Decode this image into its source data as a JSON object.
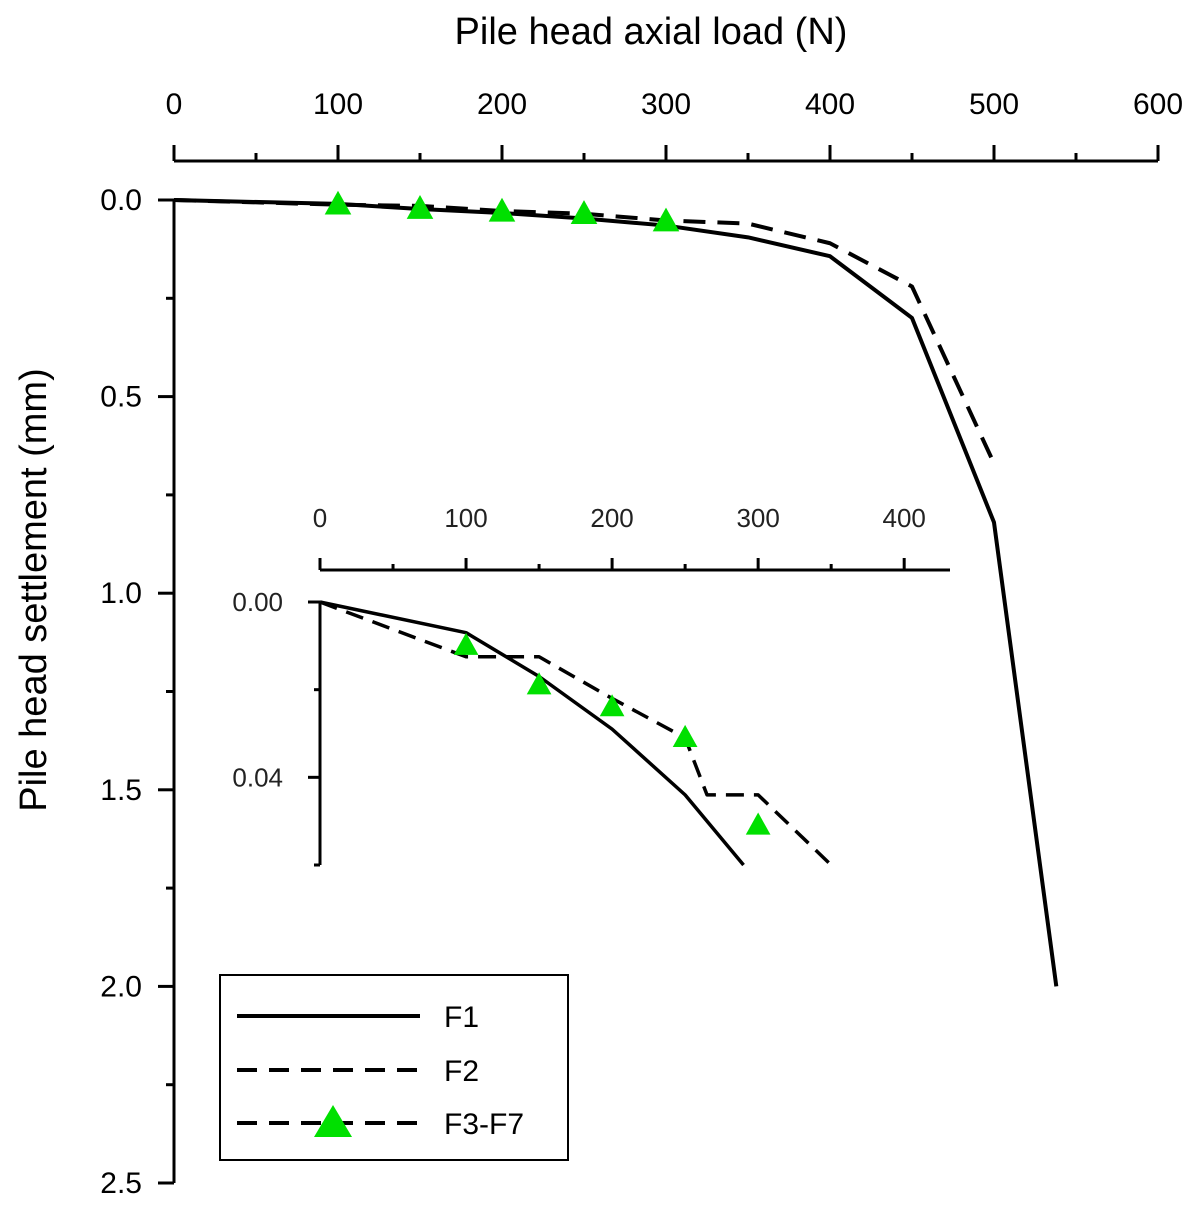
{
  "colors": {
    "line": "#000000",
    "marker": "#00e000",
    "background": "#ffffff"
  },
  "chart_data": [
    {
      "type": "line",
      "xlabel": "Pile head axial load (N)",
      "ylabel": "Pile head settlement (mm)",
      "x_axis_position": "top",
      "y_inverted": true,
      "xlim": [
        0,
        600
      ],
      "ylim": [
        0,
        2.5
      ],
      "xticks": [
        "0",
        "100",
        "200",
        "300",
        "400",
        "500",
        "600"
      ],
      "yticks": [
        "0.0",
        "0.5",
        "1.0",
        "1.5",
        "2.0",
        "2.5"
      ],
      "legend_position": "bottom-left",
      "series": [
        {
          "name": "F1",
          "style": "solid",
          "x": [
            0,
            100,
            150,
            200,
            250,
            300,
            350,
            400,
            450,
            500,
            538
          ],
          "y": [
            0,
            0.01,
            0.023,
            0.033,
            0.047,
            0.065,
            0.095,
            0.143,
            0.3,
            0.82,
            2.0
          ]
        },
        {
          "name": "F2",
          "style": "dashed",
          "x": [
            0,
            100,
            150,
            200,
            250,
            300,
            350,
            400,
            450,
            500
          ],
          "y": [
            0,
            0.012,
            0.015,
            0.028,
            0.035,
            0.052,
            0.06,
            0.11,
            0.22,
            0.67
          ]
        },
        {
          "name": "F3-F7",
          "style": "dashed-triangle",
          "x": [
            100,
            150,
            200,
            250,
            300
          ],
          "y": [
            0.012,
            0.023,
            0.03,
            0.036,
            0.055
          ]
        }
      ]
    },
    {
      "type": "line",
      "inset": true,
      "xlim": [
        0,
        430
      ],
      "ylim": [
        0,
        0.06
      ],
      "xticks": [
        "0",
        "100",
        "200",
        "300",
        "400"
      ],
      "yticks": [
        "0.00",
        "0.04"
      ],
      "series": [
        {
          "name": "F1",
          "style": "solid",
          "x": [
            0,
            100,
            150,
            200,
            250,
            290
          ],
          "y": [
            0,
            0.007,
            0.017,
            0.029,
            0.044,
            0.06
          ]
        },
        {
          "name": "F2",
          "style": "dashed",
          "x": [
            0,
            100,
            150,
            200,
            250,
            265,
            300,
            350
          ],
          "y": [
            0,
            0.0125,
            0.0125,
            0.022,
            0.031,
            0.044,
            0.044,
            0.06
          ]
        },
        {
          "name": "F3-F7",
          "style": "dashed-triangle",
          "x": [
            100,
            150,
            200,
            250,
            300
          ],
          "y": [
            0.01,
            0.019,
            0.024,
            0.031,
            0.051
          ]
        }
      ]
    }
  ],
  "legend": {
    "items": [
      "F1",
      "F2",
      "F3-F7"
    ]
  }
}
